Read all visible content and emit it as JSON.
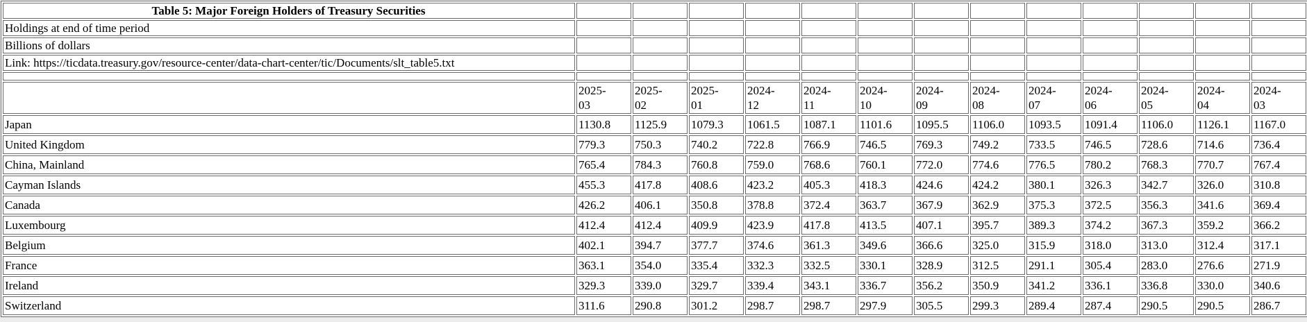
{
  "colors": {
    "text": "#000000",
    "background": "#ffffff",
    "border": "#6a6a6a",
    "page_background": "#ececec"
  },
  "chart_data": {
    "type": "table",
    "title": "Table 5: Major Foreign Holders of Treasury Securities",
    "note_period": "Holdings at end of time period",
    "note_units": "Billions of dollars",
    "link_text": "Link: https://ticdata.treasury.gov/resource-center/data-chart-center/tic/Documents/slt_table5.txt",
    "columns": [
      "2025-03",
      "2025-02",
      "2025-01",
      "2024-12",
      "2024-11",
      "2024-10",
      "2024-09",
      "2024-08",
      "2024-07",
      "2024-06",
      "2024-05",
      "2024-04",
      "2024-03"
    ],
    "rows": [
      {
        "label": "Japan",
        "values": [
          "1130.8",
          "1125.9",
          "1079.3",
          "1061.5",
          "1087.1",
          "1101.6",
          "1095.5",
          "1106.0",
          "1093.5",
          "1091.4",
          "1106.0",
          "1126.1",
          "1167.0"
        ]
      },
      {
        "label": "United Kingdom",
        "values": [
          "779.3",
          "750.3",
          "740.2",
          "722.8",
          "766.9",
          "746.5",
          "769.3",
          "749.2",
          "733.5",
          "746.5",
          "728.6",
          "714.6",
          "736.4"
        ]
      },
      {
        "label": "China, Mainland",
        "values": [
          "765.4",
          "784.3",
          "760.8",
          "759.0",
          "768.6",
          "760.1",
          "772.0",
          "774.6",
          "776.5",
          "780.2",
          "768.3",
          "770.7",
          "767.4"
        ]
      },
      {
        "label": "Cayman Islands",
        "values": [
          "455.3",
          "417.8",
          "408.6",
          "423.2",
          "405.3",
          "418.3",
          "424.6",
          "424.2",
          "380.1",
          "326.3",
          "342.7",
          "326.0",
          "310.8"
        ]
      },
      {
        "label": "Canada",
        "values": [
          "426.2",
          "406.1",
          "350.8",
          "378.8",
          "372.4",
          "363.7",
          "367.9",
          "362.9",
          "375.3",
          "372.5",
          "356.3",
          "341.6",
          "369.4"
        ]
      },
      {
        "label": "Luxembourg",
        "values": [
          "412.4",
          "412.4",
          "409.9",
          "423.9",
          "417.8",
          "413.5",
          "407.1",
          "395.7",
          "389.3",
          "374.2",
          "367.3",
          "359.2",
          "366.2"
        ]
      },
      {
        "label": "Belgium",
        "values": [
          "402.1",
          "394.7",
          "377.7",
          "374.6",
          "361.3",
          "349.6",
          "366.6",
          "325.0",
          "315.9",
          "318.0",
          "313.0",
          "312.4",
          "317.1"
        ]
      },
      {
        "label": "France",
        "values": [
          "363.1",
          "354.0",
          "335.4",
          "332.3",
          "332.5",
          "330.1",
          "328.9",
          "312.5",
          "291.1",
          "305.4",
          "283.0",
          "276.6",
          "271.9"
        ]
      },
      {
        "label": "Ireland",
        "values": [
          "329.3",
          "339.0",
          "329.7",
          "339.4",
          "343.1",
          "336.7",
          "356.2",
          "350.9",
          "341.2",
          "336.1",
          "336.8",
          "330.0",
          "340.6"
        ]
      },
      {
        "label": "Switzerland",
        "values": [
          "311.6",
          "290.8",
          "301.2",
          "298.7",
          "298.7",
          "297.9",
          "305.5",
          "299.3",
          "289.4",
          "287.4",
          "290.5",
          "290.5",
          "286.7"
        ]
      }
    ]
  }
}
